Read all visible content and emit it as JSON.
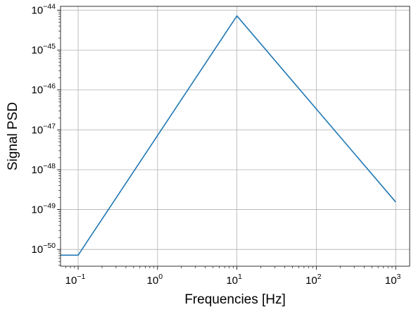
{
  "chart_data": {
    "type": "line",
    "title": "",
    "xlabel": "Frequencies [Hz]",
    "ylabel": "Signal PSD",
    "x_scale": "log",
    "y_scale": "log",
    "xlim": [
      0.06,
      1500
    ],
    "ylim": [
      3.8e-51,
      1.25e-44
    ],
    "grid": true,
    "legend": "none",
    "x_ticks": [
      {
        "base": "10",
        "exp": "−1"
      },
      {
        "base": "10",
        "exp": "0"
      },
      {
        "base": "10",
        "exp": "1"
      },
      {
        "base": "10",
        "exp": "2"
      },
      {
        "base": "10",
        "exp": "3"
      }
    ],
    "x_tick_values": [
      0.1,
      1,
      10,
      100,
      1000
    ],
    "y_ticks": [
      {
        "base": "10",
        "exp": "−50"
      },
      {
        "base": "10",
        "exp": "−49"
      },
      {
        "base": "10",
        "exp": "−48"
      },
      {
        "base": "10",
        "exp": "−47"
      },
      {
        "base": "10",
        "exp": "−46"
      },
      {
        "base": "10",
        "exp": "−45"
      },
      {
        "base": "10",
        "exp": "−44"
      }
    ],
    "y_tick_values": [
      1e-50,
      1e-49,
      1e-48,
      1e-47,
      1e-46,
      1e-45,
      1e-44
    ],
    "series": [
      {
        "color": "#1f77b4",
        "x": [
          0.06,
          0.1,
          10,
          1000
        ],
        "y": [
          7.2e-51,
          7.2e-51,
          7.2e-45,
          1.55e-49
        ]
      }
    ]
  }
}
